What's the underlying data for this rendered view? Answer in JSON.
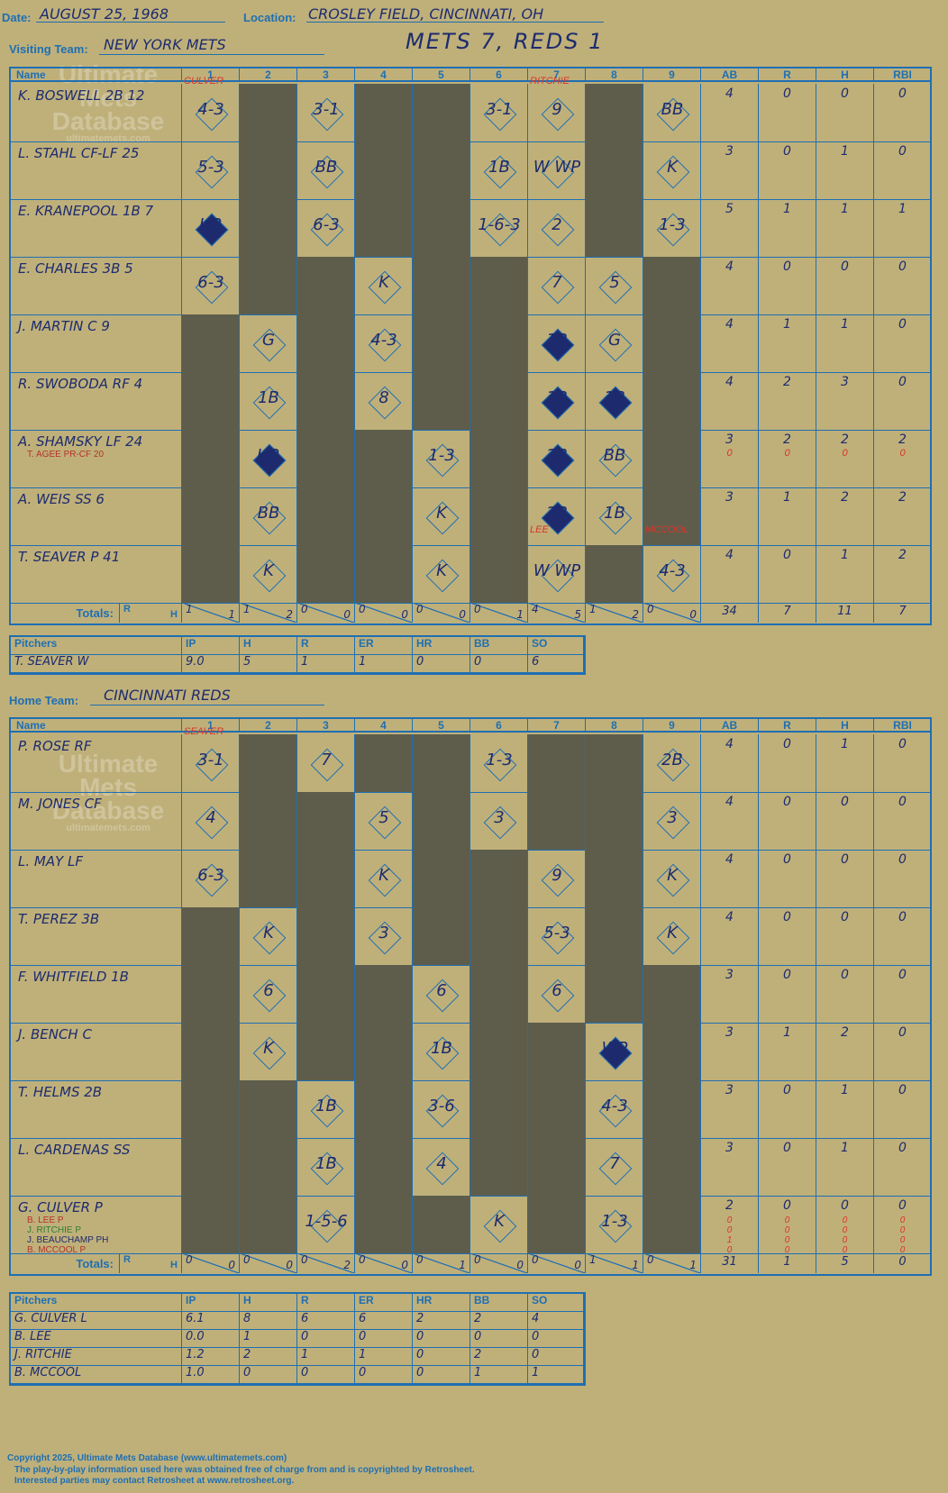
{
  "header": {
    "date_label": "Date:",
    "date": "AUGUST 25, 1968",
    "location_label": "Location:",
    "location": "CROSLEY FIELD, CINCINNATI, OH",
    "visiting_label": "Visiting Team:",
    "visiting_team": "NEW YORK METS",
    "score": "METS 7, REDS 1",
    "home_label": "Home Team:",
    "home_team": "CINCINNATI REDS"
  },
  "watermark": {
    "line1": "Ultimate",
    "line2": "Mets",
    "line3": "Database",
    "url": "ultimatemets.com"
  },
  "columns": [
    "Name",
    "1",
    "2",
    "3",
    "4",
    "5",
    "6",
    "7",
    "8",
    "9",
    "AB",
    "R",
    "H",
    "RBI"
  ],
  "totals_label": "Totals:",
  "rh_label_r": "R",
  "rh_label_h": "H",
  "visitors": {
    "players": [
      {
        "name": "K. BOSWELL 2B  12",
        "sub": "",
        "ab": "4",
        "r": "0",
        "h": "0",
        "rbi": "0"
      },
      {
        "name": "L. STAHL CF-LF  25",
        "sub": "",
        "ab": "3",
        "r": "0",
        "h": "1",
        "rbi": "0"
      },
      {
        "name": "E. KRANEPOOL 1B  7",
        "sub": "",
        "ab": "5",
        "r": "1",
        "h": "1",
        "rbi": "1"
      },
      {
        "name": "E. CHARLES 3B  5",
        "sub": "",
        "ab": "4",
        "r": "0",
        "h": "0",
        "rbi": "0"
      },
      {
        "name": "J. MARTIN C  9",
        "sub": "",
        "ab": "4",
        "r": "1",
        "h": "1",
        "rbi": "0"
      },
      {
        "name": "R. SWOBODA RF  4",
        "sub": "",
        "ab": "4",
        "r": "2",
        "h": "3",
        "rbi": "0"
      },
      {
        "name": "A. SHAMSKY LF  24",
        "sub": "T. AGEE PR-CF  20",
        "ab": "3",
        "r": "2",
        "h": "2",
        "rbi": "2",
        "sub_ab": "0",
        "sub_r": "0",
        "sub_h": "0",
        "sub_rbi": "0"
      },
      {
        "name": "A. WEIS SS  6",
        "sub": "",
        "ab": "3",
        "r": "1",
        "h": "2",
        "rbi": "2"
      },
      {
        "name": "T. SEAVER P  41",
        "sub": "",
        "ab": "4",
        "r": "0",
        "h": "1",
        "rbi": "2"
      }
    ],
    "totals": {
      "ab": "34",
      "r": "7",
      "h": "11",
      "rbi": "7",
      "innings": [
        [
          "1",
          "1"
        ],
        [
          "1",
          "2"
        ],
        [
          "0",
          "0"
        ],
        [
          "0",
          "0"
        ],
        [
          "0",
          "0"
        ],
        [
          "0",
          "1"
        ],
        [
          "4",
          "5"
        ],
        [
          "1",
          "2"
        ],
        [
          "0",
          "0"
        ]
      ]
    },
    "pitchers_header": [
      "Pitchers",
      "IP",
      "H",
      "R",
      "ER",
      "HR",
      "BB",
      "SO"
    ],
    "pitchers": [
      [
        "T. SEAVER  W",
        "9.0",
        "5",
        "1",
        "1",
        "0",
        "0",
        "6"
      ]
    ]
  },
  "home": {
    "players": [
      {
        "name": "P. ROSE RF",
        "ab": "4",
        "r": "0",
        "h": "1",
        "rbi": "0"
      },
      {
        "name": "M. JONES CF",
        "ab": "4",
        "r": "0",
        "h": "0",
        "rbi": "0"
      },
      {
        "name": "L. MAY LF",
        "ab": "4",
        "r": "0",
        "h": "0",
        "rbi": "0"
      },
      {
        "name": "T. PEREZ 3B",
        "ab": "4",
        "r": "0",
        "h": "0",
        "rbi": "0"
      },
      {
        "name": "F. WHITFIELD 1B",
        "ab": "3",
        "r": "0",
        "h": "0",
        "rbi": "0"
      },
      {
        "name": "J. BENCH C",
        "ab": "3",
        "r": "1",
        "h": "2",
        "rbi": "0"
      },
      {
        "name": "T. HELMS 2B",
        "ab": "3",
        "r": "0",
        "h": "1",
        "rbi": "0"
      },
      {
        "name": "L. CARDENAS SS",
        "ab": "3",
        "r": "0",
        "h": "1",
        "rbi": "0"
      },
      {
        "name": "G. CULVER P",
        "ab": "2",
        "r": "0",
        "h": "0",
        "rbi": "0"
      }
    ],
    "subs": [
      "B. LEE P",
      "J. RITCHIE P",
      "J. BEAUCHAMP PH",
      "B. MCCOOL P"
    ],
    "sub_stats": [
      [
        "0",
        "0",
        "0",
        "0"
      ],
      [
        "0",
        "0",
        "0",
        "0"
      ],
      [
        "1",
        "0",
        "0",
        "0"
      ],
      [
        "0",
        "0",
        "0",
        "0"
      ]
    ],
    "totals": {
      "ab": "31",
      "r": "1",
      "h": "5",
      "rbi": "0",
      "innings": [
        [
          "0",
          "0"
        ],
        [
          "0",
          "0"
        ],
        [
          "0",
          "2"
        ],
        [
          "0",
          "0"
        ],
        [
          "0",
          "1"
        ],
        [
          "0",
          "0"
        ],
        [
          "0",
          "0"
        ],
        [
          "1",
          "1"
        ],
        [
          "0",
          "1"
        ]
      ]
    },
    "pitchers_header": [
      "Pitchers",
      "IP",
      "H",
      "R",
      "ER",
      "HR",
      "BB",
      "SO"
    ],
    "pitchers": [
      [
        "G. CULVER  L",
        "6.1",
        "8",
        "6",
        "6",
        "2",
        "2",
        "4"
      ],
      [
        "B. LEE",
        "0.0",
        "1",
        "0",
        "0",
        "0",
        "0",
        "0"
      ],
      [
        "J. RITCHIE",
        "1.2",
        "2",
        "1",
        "1",
        "0",
        "2",
        "0"
      ],
      [
        "B. MCCOOL",
        "1.0",
        "0",
        "0",
        "0",
        "0",
        "1",
        "1"
      ]
    ]
  },
  "pitcher_change_notes": {
    "v_culver": "CULVER",
    "v_ritchie": "RITCHIE",
    "v_lee": "LEE",
    "v_mccool": "MCCOOL",
    "h_seaver": "SEAVER"
  },
  "visitor_plays": [
    [
      "4-3",
      "",
      "3-1",
      "",
      "",
      "3-1",
      "9",
      "",
      "BB"
    ],
    [
      "5-3",
      "",
      "BB",
      "",
      "",
      "1B",
      "W WP",
      "",
      "K"
    ],
    [
      "HR",
      "",
      "6-3",
      "",
      "",
      "1-6-3",
      "2",
      "",
      "1-3"
    ],
    [
      "6-3",
      "",
      "",
      "K",
      "",
      "",
      "7",
      "5",
      ""
    ],
    [
      "",
      "G",
      "",
      "4-3",
      "",
      "",
      "1B",
      "G",
      ""
    ],
    [
      "",
      "1B",
      "",
      "8",
      "",
      "",
      "1B",
      "1B",
      ""
    ],
    [
      "",
      "HR",
      "",
      "",
      "1-3",
      "",
      "2B",
      "BB",
      ""
    ],
    [
      "",
      "BB",
      "",
      "",
      "K",
      "",
      "2B",
      "1B",
      ""
    ],
    [
      "",
      "K",
      "",
      "",
      "K",
      "",
      "W WP",
      "",
      "4-3"
    ]
  ],
  "home_plays": [
    [
      "3-1",
      "",
      "7",
      "",
      "",
      "1-3",
      "",
      "",
      "2B"
    ],
    [
      "4",
      "",
      "",
      "5",
      "",
      "3",
      "",
      "",
      "3"
    ],
    [
      "6-3",
      "",
      "",
      "K",
      "",
      "",
      "9",
      "",
      "K"
    ],
    [
      "",
      "K",
      "",
      "3",
      "",
      "",
      "5-3",
      "",
      "K"
    ],
    [
      "",
      "6",
      "",
      "",
      "6",
      "",
      "6",
      "",
      ""
    ],
    [
      "",
      "K",
      "",
      "",
      "1B",
      "",
      "",
      "WP",
      ""
    ],
    [
      "",
      "",
      "1B",
      "",
      "3-6",
      "",
      "",
      "4-3",
      ""
    ],
    [
      "",
      "",
      "1B",
      "",
      "4",
      "",
      "",
      "7",
      ""
    ],
    [
      "",
      "",
      "1-5-6",
      "",
      "",
      "K",
      "",
      "1-3",
      ""
    ]
  ],
  "footer": {
    "line1": "Copyright 2025, Ultimate Mets Database (www.ultimatemets.com)",
    "line2": "The play-by-play information used here was obtained free of charge from and is copyrighted by Retrosheet.",
    "line3": "Interested parties may contact Retrosheet at www.retrosheet.org."
  }
}
